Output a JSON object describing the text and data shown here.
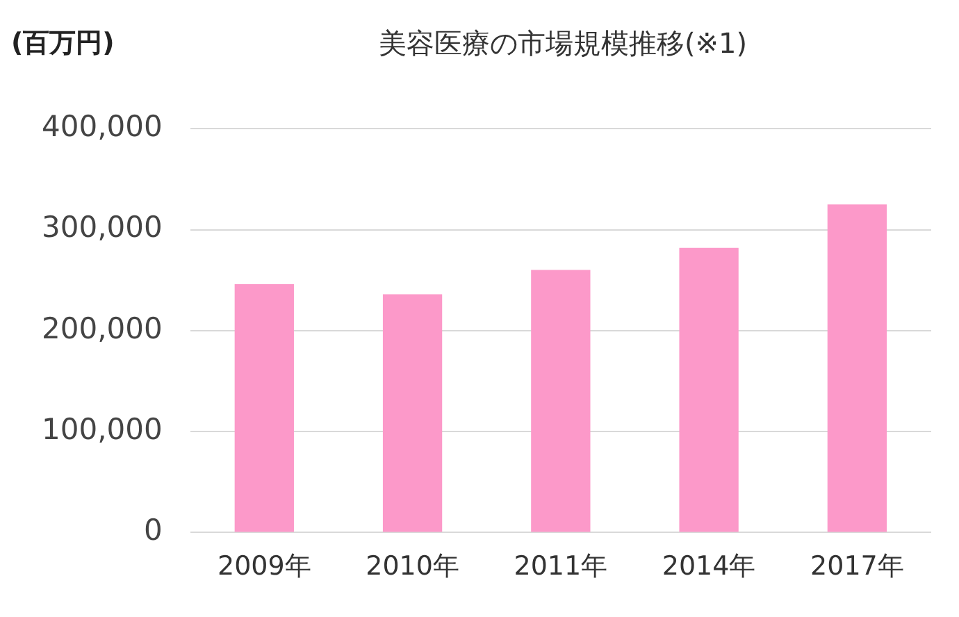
{
  "chart_data": {
    "type": "bar",
    "title": "美容医療の市場規模推移(※1)",
    "ylabel": "(百万円)",
    "categories": [
      "2009年",
      "2010年",
      "2011年",
      "2014年",
      "2017年"
    ],
    "values": [
      246000,
      236000,
      260000,
      282000,
      325000
    ],
    "color": "#fc99c9",
    "ylim": [
      0,
      400000
    ],
    "yticks": [
      {
        "value": 0,
        "label": "0"
      },
      {
        "value": 100000,
        "label": "100,000"
      },
      {
        "value": 200000,
        "label": "200,000"
      },
      {
        "value": 300000,
        "label": "300,000"
      },
      {
        "value": 400000,
        "label": "400,000"
      }
    ],
    "grid": "y",
    "legend": false
  }
}
